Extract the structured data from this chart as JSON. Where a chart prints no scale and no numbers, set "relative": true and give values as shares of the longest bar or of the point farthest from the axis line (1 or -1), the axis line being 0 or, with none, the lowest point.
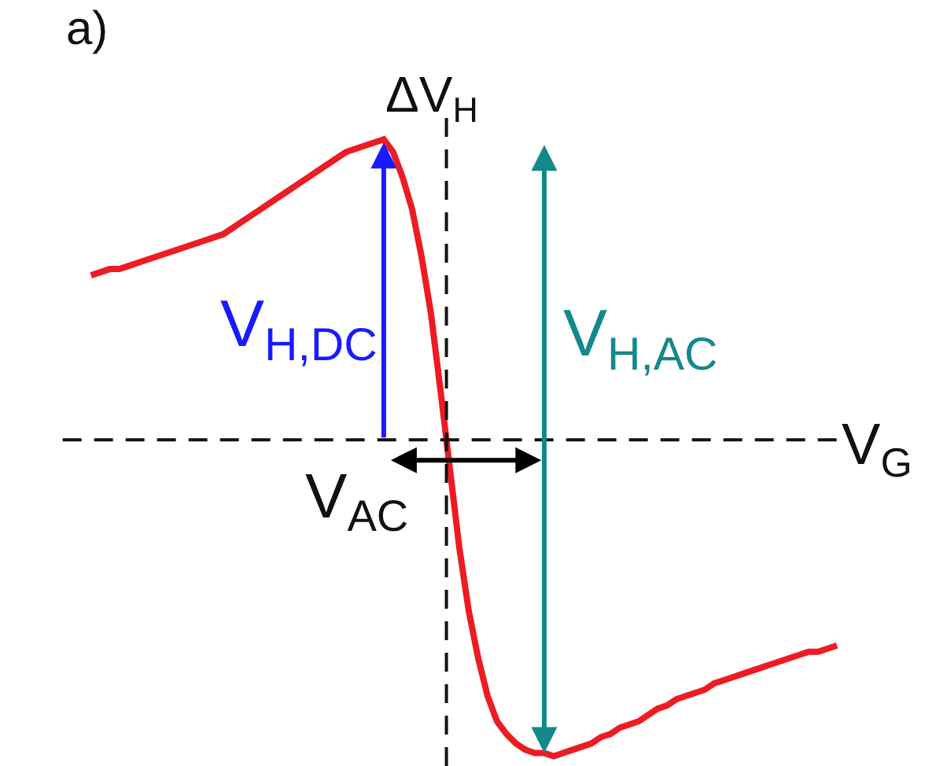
{
  "chart_data": {
    "type": "line",
    "relative": true,
    "color": "#ed1c24",
    "categories": [
      null,
      null,
      null,
      null,
      null,
      null,
      null,
      null,
      null,
      null,
      null,
      null,
      null,
      null,
      null,
      null,
      null,
      null,
      null,
      null,
      null,
      null,
      null,
      null,
      null,
      null,
      null,
      null,
      null,
      null,
      null,
      null,
      null,
      null,
      null,
      null,
      null,
      null,
      null,
      null,
      null,
      null,
      null,
      null,
      null,
      null,
      null,
      null,
      null,
      null,
      null,
      null,
      null,
      null,
      null,
      null,
      null,
      null,
      null,
      null,
      null,
      null,
      null,
      null,
      null,
      null,
      null,
      null,
      null,
      null,
      null,
      null,
      null,
      null,
      null,
      null,
      null,
      null,
      null,
      null
    ],
    "values": [
      0.52,
      0.53,
      0.54,
      0.54,
      0.55,
      0.56,
      0.57,
      0.58,
      0.59,
      0.6,
      0.61,
      0.62,
      0.63,
      0.64,
      0.65,
      0.67,
      0.69,
      0.71,
      0.73,
      0.75,
      0.77,
      0.79,
      0.81,
      0.83,
      0.85,
      0.87,
      0.89,
      0.91,
      0.92,
      0.93,
      0.94,
      0.95,
      0.91,
      0.83,
      0.73,
      0.58,
      0.4,
      0.16,
      -0.09,
      -0.34,
      -0.54,
      -0.69,
      -0.81,
      -0.89,
      -0.93,
      -0.96,
      -0.98,
      -0.99,
      -0.99,
      -1.0,
      -0.99,
      -0.98,
      -0.97,
      -0.96,
      -0.94,
      -0.93,
      -0.91,
      -0.9,
      -0.89,
      -0.87,
      -0.85,
      -0.84,
      -0.82,
      -0.81,
      -0.8,
      -0.79,
      -0.77,
      -0.76,
      -0.75,
      -0.74,
      -0.73,
      -0.72,
      -0.71,
      -0.7,
      -0.69,
      -0.68,
      -0.67,
      -0.67,
      -0.66,
      -0.65
    ],
    "ref_lines": [
      {
        "axis": "y",
        "value": 0,
        "color": "#111111",
        "line_style": "dashed"
      }
    ],
    "xlabel": "V$_{G}$",
    "ylabel": "ΔV$_{H}$",
    "annotations": [
      "a)",
      "V$_{H,DC}$",
      "V$_{H,AC}$",
      "V$_{AC}$"
    ]
  }
}
